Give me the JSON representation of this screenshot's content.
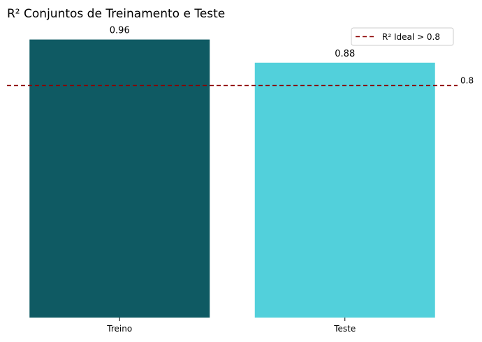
{
  "chart_data": {
    "type": "bar",
    "title": "R² Conjuntos de Treinamento e Teste",
    "xlabel": "",
    "ylabel": "",
    "categories": [
      "Treino",
      "Teste"
    ],
    "values": [
      0.96,
      0.88
    ],
    "value_labels": [
      "0.96",
      "0.88"
    ],
    "bar_colors": [
      "#0f5a63",
      "#52d0db"
    ],
    "ylim": [
      0,
      1.0
    ],
    "grid": false,
    "reference_line": {
      "value": 0.8,
      "label": "0.8",
      "color": "#8b0000",
      "style": "dashed"
    },
    "legend": {
      "placement": "top-right",
      "entries": [
        {
          "label": "R² Ideal > 0.8",
          "color": "#8b0000",
          "style": "dashed"
        }
      ]
    }
  }
}
